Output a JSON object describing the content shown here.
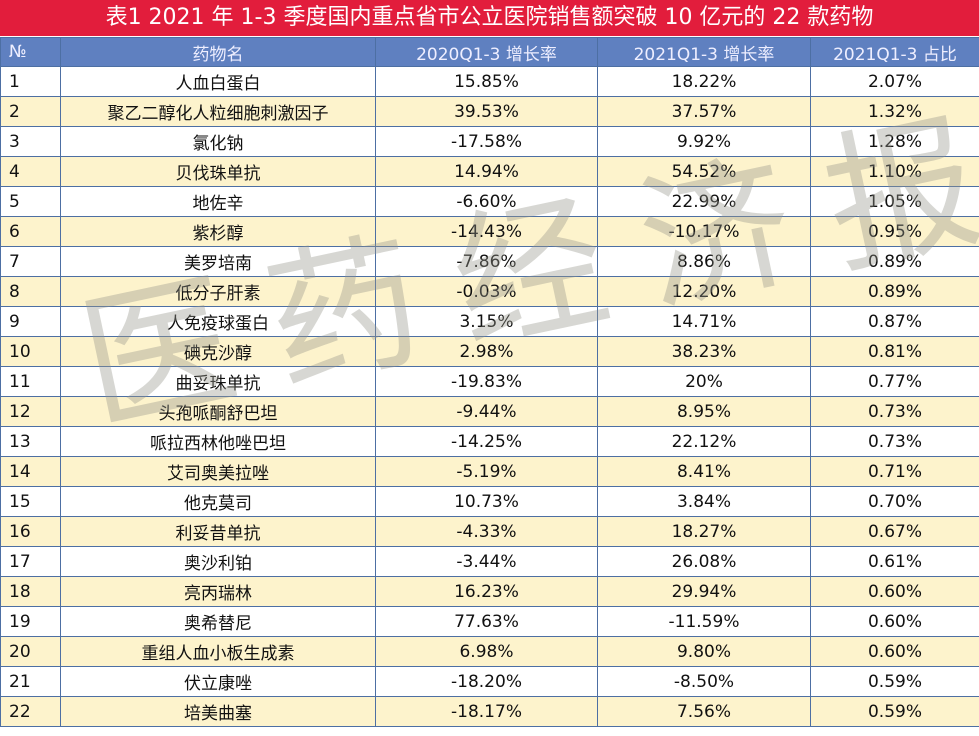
{
  "title": "表1   2021 年 1-3 季度国内重点省市公立医院销售额突破 10 亿元的 22 款药物",
  "watermark": "医药经济报",
  "columns": [
    "№",
    "药物名",
    "2020Q1-3 增长率",
    "2021Q1-3 增长率",
    "2021Q1-3 占比"
  ],
  "colors": {
    "title_bg": "#e21d3c",
    "header_bg": "#5f80c0",
    "alt_row": "#fdf3cc",
    "grid": "#4d6fa3"
  },
  "rows": [
    [
      "1",
      "人血白蛋白",
      "15.85%",
      "18.22%",
      "2.07%"
    ],
    [
      "2",
      "聚乙二醇化人粒细胞刺激因子",
      "39.53%",
      "37.57%",
      "1.32%"
    ],
    [
      "3",
      "氯化钠",
      "-17.58%",
      "9.92%",
      "1.28%"
    ],
    [
      "4",
      "贝伐珠单抗",
      "14.94%",
      "54.52%",
      "1.10%"
    ],
    [
      "5",
      "地佐辛",
      "-6.60%",
      "22.99%",
      "1.05%"
    ],
    [
      "6",
      "紫杉醇",
      "-14.43%",
      "-10.17%",
      "0.95%"
    ],
    [
      "7",
      "美罗培南",
      "-7.86%",
      "8.86%",
      "0.89%"
    ],
    [
      "8",
      "低分子肝素",
      "-0.03%",
      "12.20%",
      "0.89%"
    ],
    [
      "9",
      "人免疫球蛋白",
      "3.15%",
      "14.71%",
      "0.87%"
    ],
    [
      "10",
      "碘克沙醇",
      "2.98%",
      "38.23%",
      "0.81%"
    ],
    [
      "11",
      "曲妥珠单抗",
      "-19.83%",
      "20%",
      "0.77%"
    ],
    [
      "12",
      "头孢哌酮舒巴坦",
      "-9.44%",
      "8.95%",
      "0.73%"
    ],
    [
      "13",
      "哌拉西林他唑巴坦",
      "-14.25%",
      "22.12%",
      "0.73%"
    ],
    [
      "14",
      "艾司奥美拉唑",
      "-5.19%",
      "8.41%",
      "0.71%"
    ],
    [
      "15",
      "他克莫司",
      "10.73%",
      "3.84%",
      "0.70%"
    ],
    [
      "16",
      "利妥昔单抗",
      "-4.33%",
      "18.27%",
      "0.67%"
    ],
    [
      "17",
      "奥沙利铂",
      "-3.44%",
      "26.08%",
      "0.61%"
    ],
    [
      "18",
      "亮丙瑞林",
      "16.23%",
      "29.94%",
      "0.60%"
    ],
    [
      "19",
      "奥希替尼",
      "77.63%",
      "-11.59%",
      "0.60%"
    ],
    [
      "20",
      "重组人血小板生成素",
      "6.98%",
      "9.80%",
      "0.60%"
    ],
    [
      "21",
      "伏立康唑",
      "-18.20%",
      "-8.50%",
      "0.59%"
    ],
    [
      "22",
      "培美曲塞",
      "-18.17%",
      "7.56%",
      "0.59%"
    ]
  ]
}
